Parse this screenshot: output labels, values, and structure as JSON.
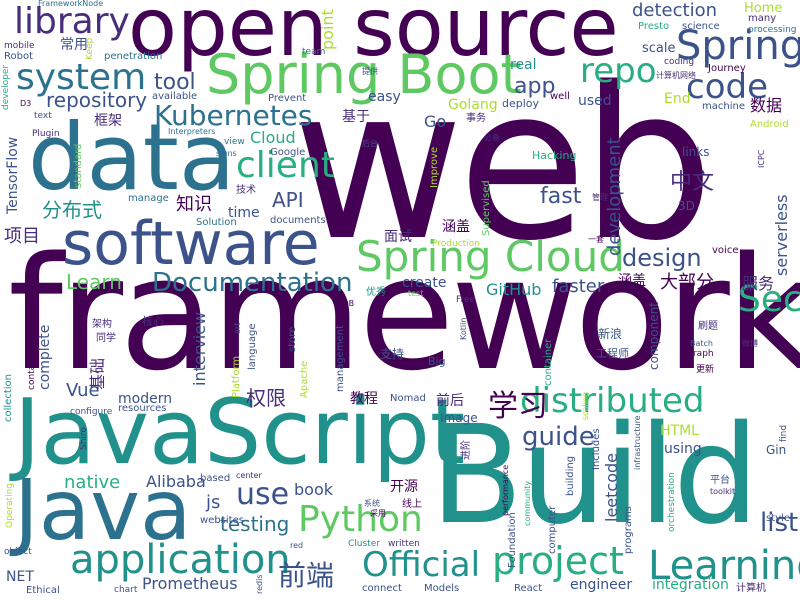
{
  "palette": {
    "purple": "#440154",
    "indigo": "#472d7b",
    "blue": "#3b528b",
    "slate": "#2c728e",
    "teal": "#21918c",
    "green": "#28ae80",
    "lime": "#5ec962",
    "yellowgreen": "#addc30",
    "yellow": "#fde725"
  },
  "words": {
    "web": "web",
    "framework": "framework",
    "build": "Build",
    "javascript": "JavaScript",
    "java": "Java",
    "data": "data",
    "software": "software",
    "open_source": "open source",
    "spring_boot": "Spring Boot",
    "spring_cloud": "Spring Cloud",
    "spring": "Spring",
    "security": "Security",
    "application": "application",
    "learning": "Learning",
    "official": "Official",
    "project": "project",
    "python": "Python",
    "distributed": "distributed",
    "documentation": "Documentation",
    "library": "library",
    "system": "system",
    "code": "code",
    "repo": "repo",
    "client": "client",
    "kubernetes": "Kubernetes",
    "repository": "repository",
    "tool": "tool",
    "app": "app",
    "design": "design",
    "guide": "guide",
    "list": "list",
    "use": "use",
    "testing": "testing",
    "detection": "detection",
    "home": "Home",
    "many": "many",
    "processing": "processing",
    "science": "science",
    "presto": "Presto",
    "frameworknode": "FrameworkNode",
    "keep": "Keep",
    "mobile": "mobile",
    "robot": "Robot",
    "changyong": "常用",
    "penetration": "penetration",
    "team": "team",
    "point": "point",
    "real": "real",
    "scale": "scale",
    "coding": "coding",
    "journey": "Journey",
    "jisuanjiwangluo": "计算机网络",
    "tigong": "提供",
    "available": "available",
    "easy": "easy",
    "golang": "Golang",
    "deploy": "deploy",
    "well": "well",
    "used": "used",
    "end": "End",
    "machine": "machine",
    "shuju": "数据",
    "android": "Android",
    "d3": "D3",
    "developer": "developer",
    "text": "text",
    "kuangjia": "框架",
    "prevent": "Prevent",
    "jiyu": "基于",
    "go": "Go",
    "shiwu": "事务",
    "bibei": "必备",
    "tensorflow": "TensorFlow",
    "plugin": "Plugin",
    "standard": "standard",
    "interpreters": "Interpreters",
    "view": "view",
    "signs": "signs",
    "cloud": "Cloud",
    "houtai": "后台",
    "improve": "Improve",
    "hacking": "Hacking",
    "links": "links",
    "zhongwen": "中文",
    "icpc": "ICPC",
    "serverless": "serverless",
    "development": "development",
    "jishu": "技术",
    "google": "Google",
    "manage": "manage",
    "fast": "fast",
    "guanli": "管理",
    "fenbushi": "分布式",
    "zhishi": "知识",
    "time": "time",
    "solution": "Solution",
    "documents": "documents",
    "supervised": "Supervised",
    "threed": "3D",
    "api": "API",
    "xiangmu": "项目",
    "mianshi": "面试",
    "hangai": "涵盖",
    "yitao": "一套",
    "voice": "voice",
    "production": "Production",
    "learn": "Learn",
    "create": "create",
    "faster": "faster",
    "dabufen": "大部分",
    "fuwu": "服务",
    "test": "test",
    "github": "GitHub",
    "youxiu": "优秀",
    "job": "JOB",
    "free": "Free",
    "jiagou": "架构",
    "hexin": "核心",
    "tongxue": "同学",
    "art": "art",
    "kotlin": "Kotlin",
    "xinlang": "新浪",
    "shuati": "刷题",
    "containerized": "containerized",
    "interview": "interview",
    "complete": "complete",
    "language": "language",
    "platform": "Platform",
    "store": "store",
    "management": "management",
    "zhichi": "支持",
    "big": "Big",
    "container": "container",
    "gongchengshi": "工程师",
    "batch": "Batch",
    "graph": "Graph",
    "component": "component",
    "weibo": "微博",
    "gengxin": "更新",
    "quanxian": "权限",
    "jichu": "基础",
    "vue": "Vue",
    "jiaocheng": "教程",
    "nomad": "Nomad",
    "qianhou": "前后",
    "xuexi": "学习",
    "html": "HTML",
    "apache": "Apache",
    "collection": "collection",
    "configure": "configure",
    "shiro": "Shiro",
    "resources": "resources",
    "modern": "modern",
    "image": "Image",
    "jinjie": "进阶",
    "includes": "Includes",
    "scaling": "scaling",
    "using": "using",
    "infrastructure": "infrastructure",
    "gin": "Gin",
    "find": "find",
    "native": "native",
    "alibaba": "Alibaba",
    "js": "js",
    "based": "based",
    "center": "center",
    "book": "book",
    "kaiyuan": "开源",
    "xianshang": "线上",
    "xitong": "系统",
    "caiyong": "采用",
    "building": "building",
    "performance": "performance",
    "community": "community",
    "leetcode": "leetcode",
    "pingtai": "平台",
    "toolkit": "toolkit",
    "orchestration": "orchestration",
    "operating": "Operating",
    "object": "object",
    "websites": "websites",
    "cluster": "Cluster",
    "written": "written",
    "computer": "computer",
    "programs": "programs",
    "style": "style",
    "foundation": "Foundation",
    "net": "NET",
    "ethical": "Ethical",
    "chart": "chart",
    "prometheus": "Prometheus",
    "redis": "redis",
    "red": "red",
    "qianduan": "前端",
    "connect": "connect",
    "models": "Models",
    "react": "React",
    "engineer": "engineer",
    "integration": "integration",
    "jisuanji": "计算机"
  }
}
